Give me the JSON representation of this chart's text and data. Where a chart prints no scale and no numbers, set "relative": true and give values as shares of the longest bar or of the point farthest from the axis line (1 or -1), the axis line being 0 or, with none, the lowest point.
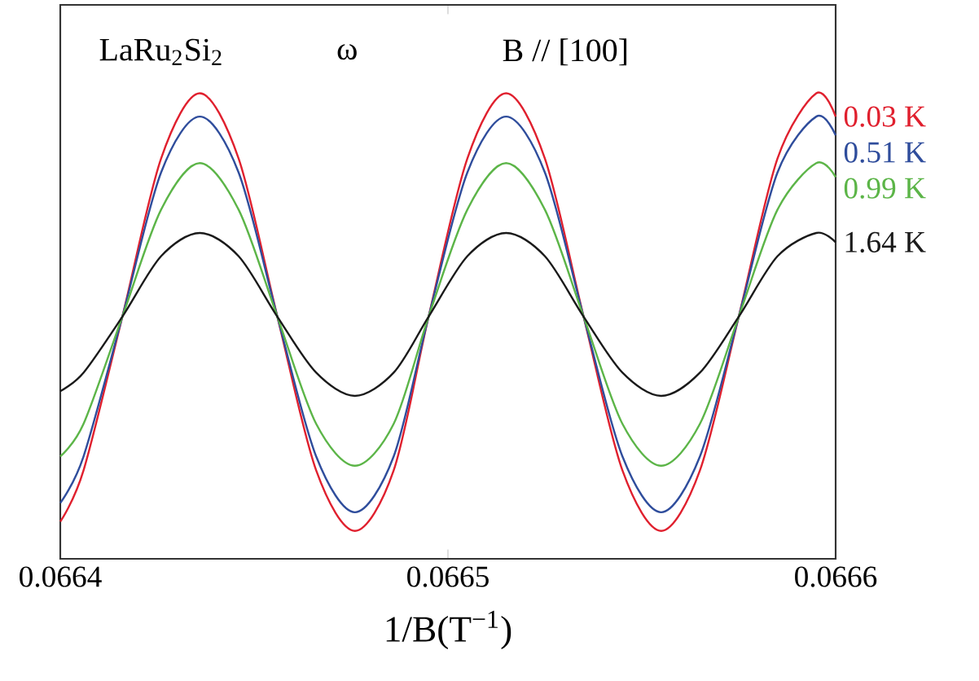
{
  "chart_data": {
    "type": "line",
    "relative": true,
    "xlabel": "1/B(T$^{−1}$)",
    "annotations": [
      "LaRu$_{2}$Si$_{2}$",
      "ω",
      "B // [100]"
    ],
    "x": [
      0.0664,
      0.066406,
      0.066416,
      0.066426,
      0.066436,
      0.066446,
      0.066456,
      0.066466,
      0.066476,
      0.066486,
      0.066495,
      0.066505,
      0.066515,
      0.066525,
      0.066535,
      0.066545,
      0.066555,
      0.066565,
      0.066575,
      0.066585,
      0.066595,
      0.0666
    ],
    "xlim": [
      0.0664,
      0.0666
    ],
    "xticks": [
      0.0664,
      0.0665,
      0.0666
    ],
    "legend": false,
    "series": [
      {
        "name": "0.03 K",
        "color": "#e0202e",
        "values": [
          0.08,
          0.19,
          0.52,
          0.86,
          1,
          0.86,
          0.52,
          0.19,
          0.06,
          0.19,
          0.52,
          0.86,
          1,
          0.86,
          0.52,
          0.19,
          0.06,
          0.19,
          0.52,
          0.86,
          1,
          0.95
        ]
      },
      {
        "name": "0.51 K",
        "color": "#2f4d9c",
        "values": [
          0.12,
          0.22,
          0.52,
          0.83,
          0.95,
          0.83,
          0.52,
          0.22,
          0.1,
          0.22,
          0.52,
          0.83,
          0.95,
          0.83,
          0.52,
          0.22,
          0.1,
          0.22,
          0.52,
          0.83,
          0.95,
          0.91
        ]
      },
      {
        "name": "0.99 K",
        "color": "#5cb548",
        "values": [
          0.22,
          0.29,
          0.52,
          0.75,
          0.85,
          0.75,
          0.52,
          0.29,
          0.2,
          0.29,
          0.52,
          0.75,
          0.85,
          0.75,
          0.52,
          0.29,
          0.2,
          0.29,
          0.52,
          0.75,
          0.85,
          0.82
        ]
      },
      {
        "name": "1.64 K",
        "color": "#1a1a1a",
        "values": [
          0.36,
          0.4,
          0.52,
          0.65,
          0.7,
          0.65,
          0.52,
          0.4,
          0.35,
          0.4,
          0.52,
          0.65,
          0.7,
          0.65,
          0.52,
          0.4,
          0.35,
          0.4,
          0.52,
          0.65,
          0.7,
          0.68
        ]
      }
    ]
  }
}
